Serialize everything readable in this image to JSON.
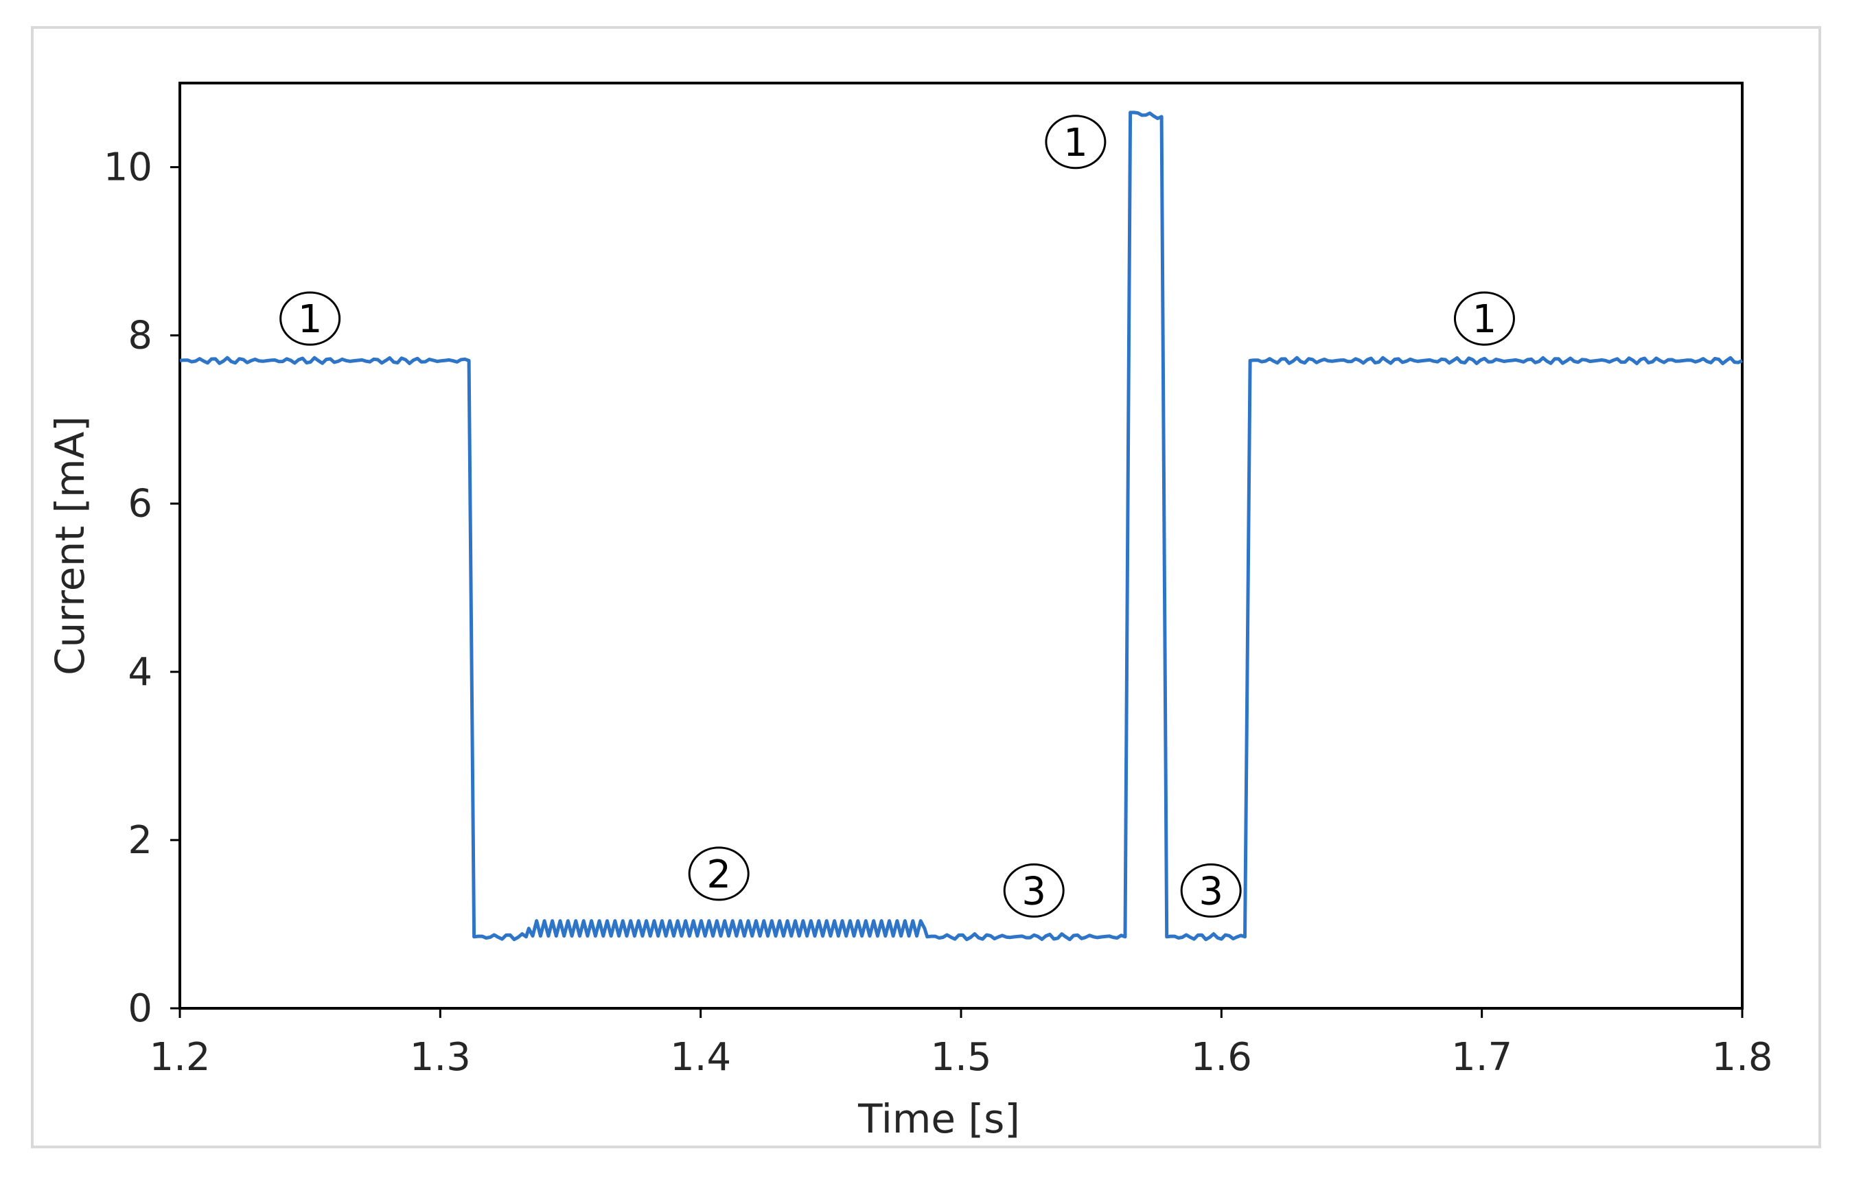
{
  "chart_data": {
    "type": "line",
    "xlabel": "Time [s]",
    "ylabel": "Current  [mA]",
    "xlim": [
      1.2,
      1.8
    ],
    "ylim": [
      0,
      11
    ],
    "xticks": [
      "1.2",
      "1.3",
      "1.4",
      "1.5",
      "1.6",
      "1.7",
      "1.8"
    ],
    "yticks": [
      "0",
      "2",
      "4",
      "6",
      "8",
      "10"
    ],
    "grid": false,
    "line_color": "#2E75C8",
    "series": [
      {
        "x": [
          1.2,
          1.311,
          1.313,
          1.333,
          1.334,
          1.486,
          1.487,
          1.563,
          1.565,
          1.577,
          1.579,
          1.609,
          1.611,
          1.8
        ],
        "y": [
          7.7,
          7.7,
          0.85,
          0.85,
          0.95,
          0.95,
          0.85,
          0.85,
          10.65,
          10.6,
          0.85,
          0.85,
          7.7,
          7.7
        ]
      }
    ],
    "annotations": [
      {
        "label": "1",
        "x": 1.25,
        "y": 8.2
      },
      {
        "label": "2",
        "x": 1.407,
        "y": 1.6
      },
      {
        "label": "3",
        "x": 1.528,
        "y": 1.4
      },
      {
        "label": "1",
        "x": 1.544,
        "y": 10.3
      },
      {
        "label": "3",
        "x": 1.596,
        "y": 1.4
      },
      {
        "label": "1",
        "x": 1.701,
        "y": 8.2
      }
    ]
  }
}
